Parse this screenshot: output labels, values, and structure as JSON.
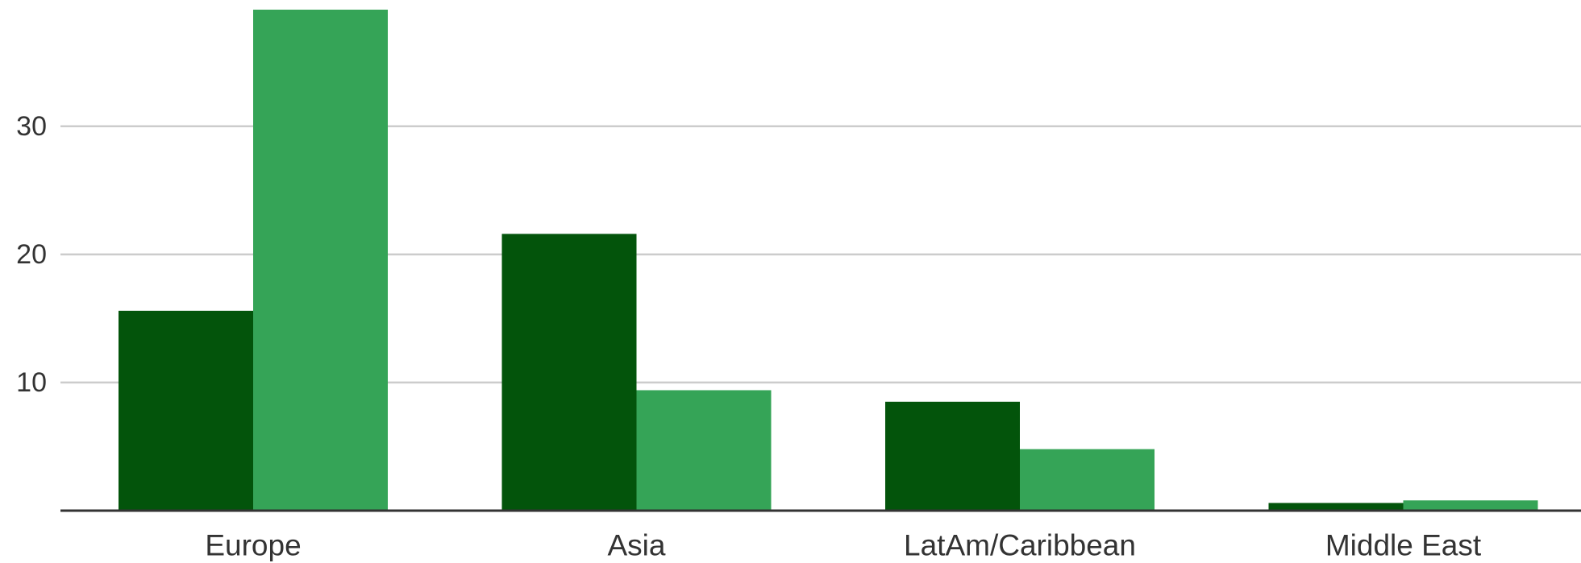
{
  "chart_data": {
    "type": "bar",
    "categories": [
      "Europe",
      "Asia",
      "LatAm/Caribbean",
      "Middle East"
    ],
    "series": [
      {
        "color": "#03540b",
        "values": [
          15.6,
          21.6,
          8.5,
          0.6
        ]
      },
      {
        "color": "#35a457",
        "values": [
          39.1,
          9.4,
          4.8,
          0.8
        ]
      }
    ],
    "ylim": [
      0,
      39.1
    ],
    "yticks": [
      10,
      20,
      30
    ],
    "grid": true,
    "legend": "none"
  }
}
